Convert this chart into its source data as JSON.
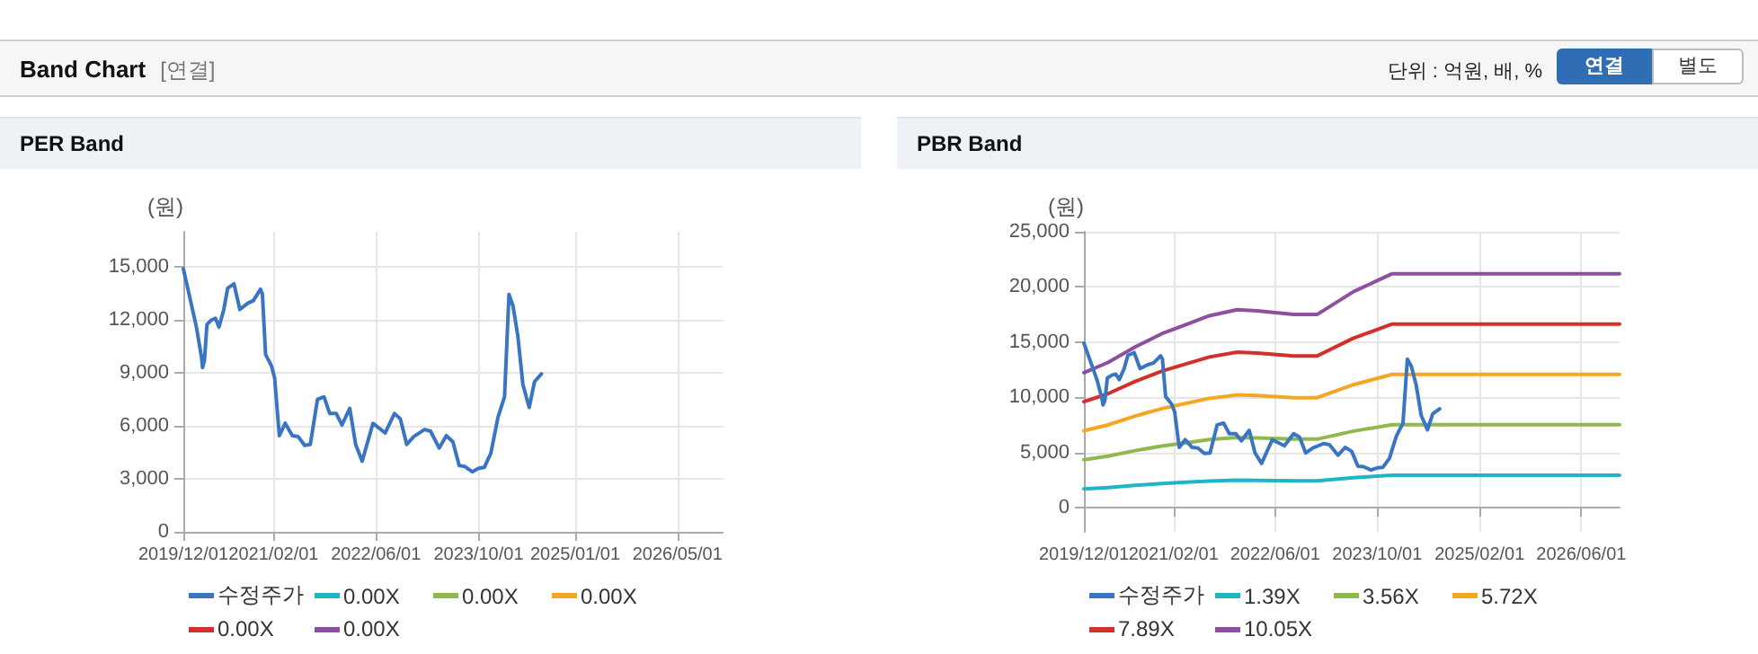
{
  "chart_data": [
    {
      "type": "other",
      "title": "Band Chart",
      "annotations": [
        "[연결]",
        "단위 : 억원, 배, %",
        "연결",
        "별도"
      ]
    },
    {
      "type": "line",
      "title": "PER Band",
      "ylabel": "(원)",
      "xlim": [
        "2019-12-01",
        "2026-12-01"
      ],
      "ylim": [
        0,
        17000
      ],
      "xticks": [
        {
          "value": "2019-12-01",
          "label": "2019/12/01"
        },
        {
          "value": "2021-02-01",
          "label": "2021/02/01"
        },
        {
          "value": "2022-06-01",
          "label": "2022/06/01"
        },
        {
          "value": "2023-10-01",
          "label": "2023/10/01"
        },
        {
          "value": "2025-01-01",
          "label": "2025/01/01"
        },
        {
          "value": "2026-05-01",
          "label": "2026/05/01"
        }
      ],
      "yticks": [
        0,
        {
          "value": 3000,
          "label": "3,000"
        },
        {
          "value": 6000,
          "label": "6,000"
        },
        {
          "value": 9000,
          "label": "9,000"
        },
        {
          "value": 12000,
          "label": "12,000"
        },
        {
          "value": 15000,
          "label": "15,000"
        }
      ],
      "grid": true,
      "legend": "bottom",
      "marker": "none",
      "line_style": "solid",
      "x": [
        "2019-12-01",
        "2020-01-04",
        "2020-02-01",
        "2020-02-25",
        "2020-03-01",
        "2020-03-10",
        "2020-03-22",
        "2020-04-12",
        "2020-05-01",
        "2020-05-18",
        "2020-06-10",
        "2020-06-28",
        "2020-07-28",
        "2020-08-25",
        "2020-10-01",
        "2020-10-28",
        "2020-12-01",
        "2020-12-10",
        "2020-12-25",
        "2021-01-22",
        "2021-02-06",
        "2021-02-28",
        "2021-03-28",
        "2021-05-01",
        "2021-05-28",
        "2021-06-28",
        "2021-07-25",
        "2021-08-28",
        "2021-09-28",
        "2021-10-25",
        "2021-11-25",
        "2021-12-22",
        "2022-01-28",
        "2022-02-25",
        "2022-03-28",
        "2022-05-18",
        "2022-07-15",
        "2022-08-28",
        "2022-09-25",
        "2022-10-25",
        "2022-11-28",
        "2023-01-18",
        "2023-02-15",
        "2023-03-28",
        "2023-05-01",
        "2023-06-01",
        "2023-07-01",
        "2023-07-28",
        "2023-09-01",
        "2023-10-01",
        "2023-10-28",
        "2023-11-28",
        "2024-01-01",
        "2024-02-01",
        "2024-02-22",
        "2024-03-12",
        "2024-04-04",
        "2024-04-28",
        "2024-05-28",
        "2024-06-22",
        "2024-07-25"
      ],
      "series": [
        {
          "name": "수정주가",
          "color": "#3a75c4",
          "values": [
            14900,
            13100,
            11600,
            9900,
            9300,
            9700,
            11750,
            12000,
            12100,
            11600,
            12600,
            13800,
            14050,
            12600,
            12950,
            13100,
            13750,
            13450,
            10050,
            9400,
            8700,
            5450,
            6150,
            5450,
            5400,
            4900,
            4950,
            7500,
            7650,
            6700,
            6700,
            6050,
            7000,
            4950,
            4000,
            6150,
            5600,
            6700,
            6400,
            4950,
            5400,
            5800,
            5700,
            4750,
            5450,
            5100,
            3750,
            3700,
            3400,
            3600,
            3650,
            4450,
            6500,
            7650,
            13450,
            12800,
            11100,
            8350,
            7050,
            8500,
            8950
          ]
        },
        {
          "name": "0.00X",
          "color": "#1fb5c4",
          "values": [
            null,
            null,
            null,
            null,
            null,
            null,
            null,
            null,
            null,
            null,
            null,
            null,
            null,
            null,
            null,
            null,
            null,
            null,
            null,
            null,
            null,
            null,
            null,
            null,
            null,
            null,
            null,
            null,
            null,
            null,
            null,
            null,
            null,
            null,
            null,
            null,
            null,
            null,
            null,
            null,
            null,
            null,
            null,
            null,
            null,
            null,
            null,
            null,
            null,
            null,
            null,
            null,
            null,
            null,
            null,
            null,
            null,
            null,
            null,
            null,
            null
          ]
        },
        {
          "name": "0.00X",
          "color": "#8fb84e",
          "values": [
            null,
            null,
            null,
            null,
            null,
            null,
            null,
            null,
            null,
            null,
            null,
            null,
            null,
            null,
            null,
            null,
            null,
            null,
            null,
            null,
            null,
            null,
            null,
            null,
            null,
            null,
            null,
            null,
            null,
            null,
            null,
            null,
            null,
            null,
            null,
            null,
            null,
            null,
            null,
            null,
            null,
            null,
            null,
            null,
            null,
            null,
            null,
            null,
            null,
            null,
            null,
            null,
            null,
            null,
            null,
            null,
            null,
            null,
            null,
            null,
            null
          ]
        },
        {
          "name": "0.00X",
          "color": "#f5a623",
          "values": [
            null,
            null,
            null,
            null,
            null,
            null,
            null,
            null,
            null,
            null,
            null,
            null,
            null,
            null,
            null,
            null,
            null,
            null,
            null,
            null,
            null,
            null,
            null,
            null,
            null,
            null,
            null,
            null,
            null,
            null,
            null,
            null,
            null,
            null,
            null,
            null,
            null,
            null,
            null,
            null,
            null,
            null,
            null,
            null,
            null,
            null,
            null,
            null,
            null,
            null,
            null,
            null,
            null,
            null,
            null,
            null,
            null,
            null,
            null,
            null,
            null
          ]
        },
        {
          "name": "0.00X",
          "color": "#d3302b",
          "values": [
            null,
            null,
            null,
            null,
            null,
            null,
            null,
            null,
            null,
            null,
            null,
            null,
            null,
            null,
            null,
            null,
            null,
            null,
            null,
            null,
            null,
            null,
            null,
            null,
            null,
            null,
            null,
            null,
            null,
            null,
            null,
            null,
            null,
            null,
            null,
            null,
            null,
            null,
            null,
            null,
            null,
            null,
            null,
            null,
            null,
            null,
            null,
            null,
            null,
            null,
            null,
            null,
            null,
            null,
            null,
            null,
            null,
            null,
            null,
            null,
            null
          ]
        },
        {
          "name": "0.00X",
          "color": "#8e4fa0",
          "values": [
            null,
            null,
            null,
            null,
            null,
            null,
            null,
            null,
            null,
            null,
            null,
            null,
            null,
            null,
            null,
            null,
            null,
            null,
            null,
            null,
            null,
            null,
            null,
            null,
            null,
            null,
            null,
            null,
            null,
            null,
            null,
            null,
            null,
            null,
            null,
            null,
            null,
            null,
            null,
            null,
            null,
            null,
            null,
            null,
            null,
            null,
            null,
            null,
            null,
            null,
            null,
            null,
            null,
            null,
            null,
            null,
            null,
            null,
            null,
            null,
            null
          ]
        }
      ]
    },
    {
      "type": "line",
      "title": "PBR Band",
      "ylabel": "(원)",
      "xlim": [
        "2019-12-01",
        "2026-12-01"
      ],
      "ylim": [
        -2200,
        25000
      ],
      "xticks": [
        {
          "value": "2019-12-01",
          "label": "2019/12/01"
        },
        {
          "value": "2021-02-01",
          "label": "2021/02/01"
        },
        {
          "value": "2022-06-01",
          "label": "2022/06/01"
        },
        {
          "value": "2023-10-01",
          "label": "2023/10/01"
        },
        {
          "value": "2025-02-01",
          "label": "2025/02/01"
        },
        {
          "value": "2026-06-01",
          "label": "2026/06/01"
        }
      ],
      "yticks": [
        0,
        {
          "value": 5000,
          "label": "5,000"
        },
        {
          "value": 10000,
          "label": "10,000"
        },
        {
          "value": 15000,
          "label": "15,000"
        },
        {
          "value": 20000,
          "label": "20,000"
        },
        {
          "value": 25000,
          "label": "25,000"
        }
      ],
      "grid": true,
      "legend": "bottom",
      "marker": "none",
      "line_style": "solid",
      "x": [
        "2019-12-01",
        "2020-01-04",
        "2020-02-01",
        "2020-02-25",
        "2020-03-01",
        "2020-03-10",
        "2020-03-22",
        "2020-04-12",
        "2020-05-01",
        "2020-05-18",
        "2020-06-10",
        "2020-06-28",
        "2020-07-28",
        "2020-08-25",
        "2020-10-01",
        "2020-10-28",
        "2020-12-01",
        "2020-12-10",
        "2020-12-25",
        "2021-01-22",
        "2021-02-06",
        "2021-02-28",
        "2021-03-28",
        "2021-05-01",
        "2021-05-28",
        "2021-06-28",
        "2021-07-25",
        "2021-08-28",
        "2021-09-28",
        "2021-10-25",
        "2021-11-25",
        "2021-12-22",
        "2022-01-28",
        "2022-02-25",
        "2022-03-28",
        "2022-05-18",
        "2022-07-15",
        "2022-08-28",
        "2022-09-25",
        "2022-10-25",
        "2022-11-28",
        "2023-01-18",
        "2023-02-15",
        "2023-03-28",
        "2023-05-01",
        "2023-06-01",
        "2023-07-01",
        "2023-07-28",
        "2023-09-01",
        "2023-10-01",
        "2023-10-28",
        "2023-11-28",
        "2024-01-01",
        "2024-02-01",
        "2024-02-22",
        "2024-03-12",
        "2024-04-04",
        "2024-04-28",
        "2024-05-28",
        "2024-06-22",
        "2024-07-25"
      ],
      "series": [
        {
          "name": "수정주가",
          "color": "#3a75c4",
          "values": [
            14900,
            13100,
            11600,
            9900,
            9300,
            9700,
            11750,
            12000,
            12100,
            11600,
            12600,
            13800,
            14050,
            12600,
            12950,
            13100,
            13750,
            13450,
            10050,
            9400,
            8700,
            5450,
            6150,
            5450,
            5400,
            4900,
            4950,
            7500,
            7650,
            6700,
            6700,
            6050,
            7000,
            4950,
            4000,
            6150,
            5600,
            6700,
            6400,
            4950,
            5400,
            5800,
            5700,
            4750,
            5450,
            5100,
            3750,
            3700,
            3400,
            3600,
            3650,
            4450,
            6500,
            7650,
            13450,
            12800,
            11100,
            8350,
            7050,
            8500,
            8950
          ]
        },
        {
          "name": "1.39X",
          "color": "#1fb5c4",
          "x": [
            "2019-12-01",
            "2020-03-25",
            "2020-08-01",
            "2020-12-07",
            "2021-04-01",
            "2021-07-22",
            "2021-12-01",
            "2022-03-07",
            "2022-08-28",
            "2022-12-18",
            "2023-06-10",
            "2023-12-12",
            "2026-12-01"
          ],
          "values": [
            1690,
            1820,
            2010,
            2180,
            2290,
            2400,
            2480,
            2470,
            2420,
            2420,
            2710,
            2930,
            2930
          ]
        },
        {
          "name": "3.56X",
          "color": "#8fb84e",
          "x": [
            "2019-12-01",
            "2020-03-25",
            "2020-08-01",
            "2020-12-07",
            "2021-04-01",
            "2021-07-22",
            "2021-12-01",
            "2022-03-07",
            "2022-08-28",
            "2022-12-18",
            "2023-06-10",
            "2023-12-12",
            "2026-12-01"
          ],
          "values": [
            4330,
            4660,
            5160,
            5580,
            5870,
            6160,
            6350,
            6320,
            6200,
            6200,
            6930,
            7510,
            7510
          ]
        },
        {
          "name": "5.72X",
          "color": "#f5a623",
          "x": [
            "2019-12-01",
            "2020-03-25",
            "2020-08-01",
            "2020-12-07",
            "2021-04-01",
            "2021-07-22",
            "2021-12-01",
            "2022-03-07",
            "2022-08-28",
            "2022-12-18",
            "2023-06-10",
            "2023-12-12",
            "2026-12-01"
          ],
          "values": [
            6960,
            7490,
            8290,
            8970,
            9440,
            9900,
            10210,
            10150,
            9960,
            9960,
            11140,
            12070,
            12070
          ]
        },
        {
          "name": "7.89X",
          "color": "#d3302b",
          "x": [
            "2019-12-01",
            "2020-03-25",
            "2020-08-01",
            "2020-12-07",
            "2021-04-01",
            "2021-07-22",
            "2021-12-01",
            "2022-03-07",
            "2022-08-28",
            "2022-12-18",
            "2023-06-10",
            "2023-12-12",
            "2026-12-01"
          ],
          "values": [
            9600,
            10320,
            11430,
            12370,
            13020,
            13650,
            14080,
            14000,
            13740,
            13740,
            15360,
            16640,
            16640
          ]
        },
        {
          "name": "10.05X",
          "color": "#8e4fa0",
          "x": [
            "2019-12-01",
            "2020-03-25",
            "2020-08-01",
            "2020-12-07",
            "2021-04-01",
            "2021-07-22",
            "2021-12-01",
            "2022-03-07",
            "2022-08-28",
            "2022-12-18",
            "2023-06-10",
            "2023-12-12",
            "2026-12-01"
          ],
          "values": [
            12230,
            13150,
            14560,
            15760,
            16580,
            17390,
            17930,
            17830,
            17500,
            17500,
            19570,
            21200,
            21200
          ]
        }
      ]
    }
  ]
}
